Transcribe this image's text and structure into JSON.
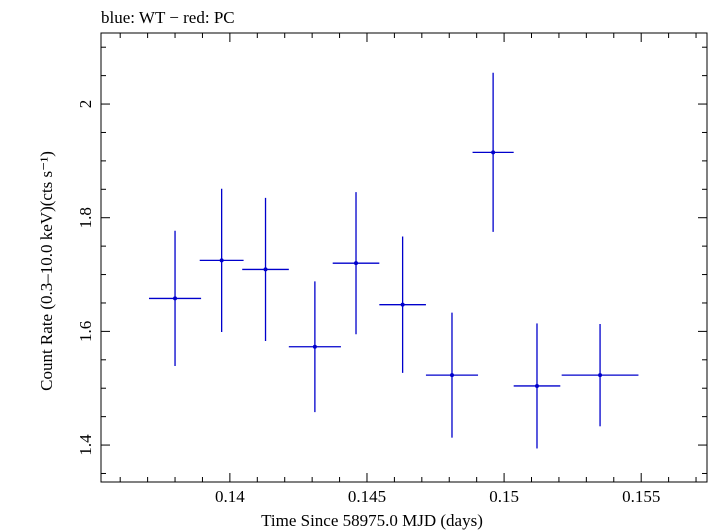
{
  "chart_data": {
    "type": "scatter",
    "title": "blue: WT − red: PC",
    "xlabel": "Time Since 58975.0 MJD (days)",
    "ylabel": "Count Rate (0.3–10.0 keV)(cts s⁻¹)",
    "xlim": [
      0.1353,
      0.1574
    ],
    "ylim": [
      1.335,
      2.125
    ],
    "x_ticks": [
      0.14,
      0.145,
      0.15,
      0.155
    ],
    "x_tick_labels": [
      "0.14",
      "0.145",
      "0.15",
      "0.155"
    ],
    "y_ticks": [
      1.4,
      1.6,
      1.8,
      2.0
    ],
    "y_tick_labels": [
      "1.4",
      "1.6",
      "1.8",
      "2"
    ],
    "grid": false,
    "series": [
      {
        "color": "#0000cc",
        "points": [
          {
            "x": 0.138,
            "xerr": 0.00095,
            "y": 1.658,
            "yerr": 0.119
          },
          {
            "x": 0.1397,
            "xerr": 0.0008,
            "y": 1.725,
            "yerr": 0.126
          },
          {
            "x": 0.1413,
            "xerr": 0.00085,
            "y": 1.709,
            "yerr": 0.126
          },
          {
            "x": 0.1431,
            "xerr": 0.00095,
            "y": 1.573,
            "yerr": 0.115
          },
          {
            "x": 0.1446,
            "xerr": 0.00085,
            "y": 1.72,
            "yerr": 0.125
          },
          {
            "x": 0.1463,
            "xerr": 0.00085,
            "y": 1.647,
            "yerr": 0.12
          },
          {
            "x": 0.1481,
            "xerr": 0.00095,
            "y": 1.523,
            "yerr": 0.11
          },
          {
            "x": 0.1496,
            "xerr": 0.00075,
            "y": 1.915,
            "yerr": 0.14
          },
          {
            "x": 0.1512,
            "xerr": 0.00085,
            "y": 1.504,
            "yerr": 0.11
          },
          {
            "x": 0.1535,
            "xerr": 0.0014,
            "y": 1.523,
            "yerr": 0.09
          }
        ]
      }
    ]
  }
}
